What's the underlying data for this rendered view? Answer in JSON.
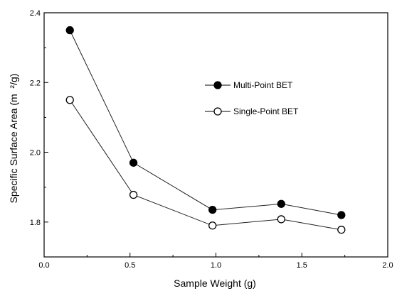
{
  "chart_data": {
    "type": "line",
    "title": "",
    "xlabel": "Sample Weight (g)",
    "ylabel": "Specific Surface Area (m  ²/g)",
    "xlim": [
      0.0,
      2.0
    ],
    "ylim": [
      1.7,
      2.4
    ],
    "x_ticks": [
      "0.0",
      "0.5",
      "1.0",
      "1.5",
      "2.0"
    ],
    "y_ticks": [
      "1.8",
      "2.0",
      "2.2",
      "2.4"
    ],
    "grid": false,
    "legend_position": "right",
    "series": [
      {
        "name": "Multi-Point BET",
        "marker": "filled-circle",
        "legend_prefix": "-●-",
        "x": [
          0.15,
          0.52,
          0.98,
          1.38,
          1.73
        ],
        "y": [
          2.35,
          1.97,
          1.835,
          1.852,
          1.82
        ]
      },
      {
        "name": "Single-Point BET",
        "marker": "open-circle",
        "legend_prefix": "—O—",
        "x": [
          0.15,
          0.52,
          0.98,
          1.38,
          1.73
        ],
        "y": [
          2.15,
          1.878,
          1.79,
          1.808,
          1.778
        ]
      }
    ]
  }
}
